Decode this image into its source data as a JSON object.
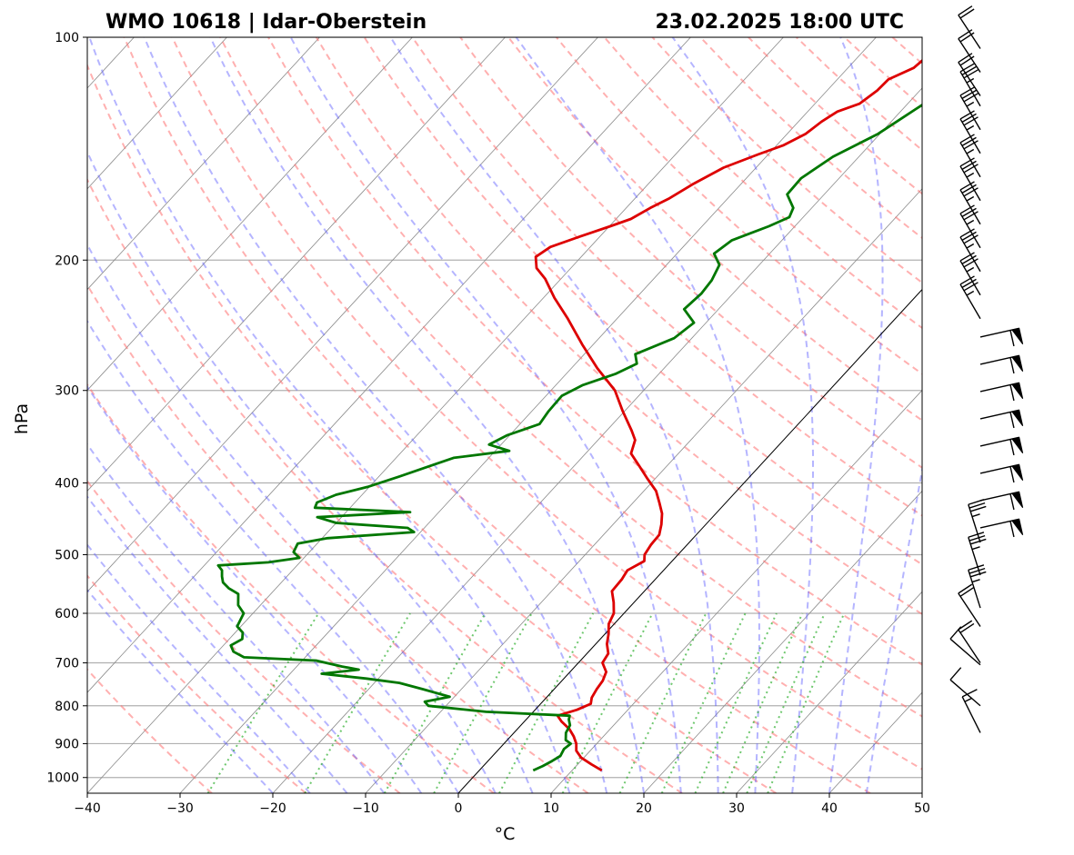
{
  "chart_data": {
    "type": "line",
    "subtype": "skew-T log-p diagram",
    "title_left": "WMO 10618 | Idar-Oberstein",
    "title_right": "23.02.2025 18:00 UTC",
    "xlabel": "°C",
    "ylabel": "hPa",
    "xlim": [
      -40,
      50
    ],
    "ylim": [
      1050,
      100
    ],
    "x_ticks": [
      -40,
      -30,
      -20,
      -10,
      0,
      10,
      20,
      30,
      40,
      50
    ],
    "x_tick_labels": [
      "−40",
      "−30",
      "−20",
      "−10",
      "0",
      "10",
      "20",
      "30",
      "40",
      "50"
    ],
    "y_ticks": [
      100,
      200,
      300,
      400,
      500,
      600,
      700,
      800,
      900,
      1000
    ],
    "y_tick_labels": [
      "100",
      "200",
      "300",
      "400",
      "500",
      "600",
      "700",
      "800",
      "900",
      "1000"
    ],
    "series": [
      {
        "name": "temperature",
        "color": "#dd0000",
        "points": [
          [
            978,
            13.2
          ],
          [
            960,
            11.5
          ],
          [
            940,
            9.7
          ],
          [
            920,
            8.5
          ],
          [
            900,
            7.8
          ],
          [
            880,
            6.8
          ],
          [
            860,
            5.6
          ],
          [
            840,
            4.0
          ],
          [
            825,
            3.0
          ],
          [
            810,
            4.5
          ],
          [
            795,
            5.4
          ],
          [
            780,
            4.9
          ],
          [
            760,
            4.6
          ],
          [
            740,
            4.4
          ],
          [
            720,
            3.9
          ],
          [
            700,
            2.6
          ],
          [
            680,
            2.3
          ],
          [
            660,
            1.2
          ],
          [
            640,
            0.4
          ],
          [
            620,
            -0.6
          ],
          [
            600,
            -1.1
          ],
          [
            580,
            -2.2
          ],
          [
            560,
            -3.5
          ],
          [
            540,
            -3.6
          ],
          [
            525,
            -3.9
          ],
          [
            510,
            -3.0
          ],
          [
            500,
            -3.6
          ],
          [
            485,
            -3.9
          ],
          [
            470,
            -4.0
          ],
          [
            455,
            -4.8
          ],
          [
            440,
            -5.8
          ],
          [
            425,
            -7.2
          ],
          [
            410,
            -8.7
          ],
          [
            395,
            -10.8
          ],
          [
            380,
            -12.9
          ],
          [
            365,
            -15.1
          ],
          [
            350,
            -16.0
          ],
          [
            340,
            -17.3
          ],
          [
            320,
            -20.2
          ],
          [
            300,
            -23.1
          ],
          [
            280,
            -27.2
          ],
          [
            260,
            -31.2
          ],
          [
            240,
            -35.3
          ],
          [
            225,
            -38.8
          ],
          [
            212,
            -41.7
          ],
          [
            205,
            -43.7
          ],
          [
            198,
            -44.9
          ],
          [
            192,
            -44.3
          ],
          [
            186,
            -42.2
          ],
          [
            180,
            -39.9
          ],
          [
            176,
            -38.4
          ],
          [
            170,
            -37.4
          ],
          [
            165,
            -36.3
          ],
          [
            158,
            -35.2
          ],
          [
            150,
            -33.5
          ],
          [
            144,
            -31.1
          ],
          [
            140,
            -29.3
          ],
          [
            135,
            -28.0
          ],
          [
            130,
            -27.5
          ],
          [
            126,
            -26.8
          ],
          [
            123,
            -25.2
          ],
          [
            118,
            -24.6
          ],
          [
            114,
            -24.5
          ],
          [
            110,
            -22.9
          ],
          [
            106,
            -22.6
          ],
          [
            102,
            -22.0
          ],
          [
            100,
            -20.6
          ]
        ]
      },
      {
        "name": "dewpoint",
        "color": "#007700",
        "points": [
          [
            978,
            5.8
          ],
          [
            965,
            6.4
          ],
          [
            950,
            6.9
          ],
          [
            935,
            7.3
          ],
          [
            915,
            7.0
          ],
          [
            900,
            7.2
          ],
          [
            890,
            6.3
          ],
          [
            870,
            5.6
          ],
          [
            850,
            5.3
          ],
          [
            835,
            4.6
          ],
          [
            825,
            4.3
          ],
          [
            815,
            -5.1
          ],
          [
            800,
            -11.9
          ],
          [
            790,
            -12.7
          ],
          [
            778,
            -10.5
          ],
          [
            760,
            -14.1
          ],
          [
            745,
            -17.3
          ],
          [
            735,
            -21.3
          ],
          [
            724,
            -26.6
          ],
          [
            715,
            -23.0
          ],
          [
            708,
            -25.1
          ],
          [
            695,
            -28.5
          ],
          [
            688,
            -36.6
          ],
          [
            676,
            -38.3
          ],
          [
            663,
            -39.2
          ],
          [
            650,
            -38.6
          ],
          [
            637,
            -39.2
          ],
          [
            625,
            -40.4
          ],
          [
            600,
            -41.0
          ],
          [
            585,
            -42.4
          ],
          [
            565,
            -43.5
          ],
          [
            555,
            -45.1
          ],
          [
            545,
            -46.3
          ],
          [
            535,
            -47.0
          ],
          [
            525,
            -47.6
          ],
          [
            517,
            -48.5
          ],
          [
            512,
            -43.4
          ],
          [
            505,
            -40.5
          ],
          [
            496,
            -41.7
          ],
          [
            483,
            -42.1
          ],
          [
            475,
            -39.4
          ],
          [
            466,
            -30.7
          ],
          [
            460,
            -31.8
          ],
          [
            453,
            -40.0
          ],
          [
            445,
            -42.6
          ],
          [
            438,
            -33.1
          ],
          [
            432,
            -43.8
          ],
          [
            425,
            -44.1
          ],
          [
            415,
            -42.8
          ],
          [
            405,
            -40.2
          ],
          [
            392,
            -37.8
          ],
          [
            382,
            -36.0
          ],
          [
            370,
            -33.8
          ],
          [
            362,
            -28.5
          ],
          [
            355,
            -31.3
          ],
          [
            345,
            -30.3
          ],
          [
            333,
            -27.9
          ],
          [
            320,
            -28.2
          ],
          [
            305,
            -28.3
          ],
          [
            295,
            -27.1
          ],
          [
            285,
            -24.7
          ],
          [
            276,
            -23.4
          ],
          [
            268,
            -24.5
          ],
          [
            255,
            -21.9
          ],
          [
            243,
            -21.3
          ],
          [
            233,
            -23.7
          ],
          [
            222,
            -23.4
          ],
          [
            213,
            -23.6
          ],
          [
            203,
            -24.3
          ],
          [
            196,
            -26.0
          ],
          [
            188,
            -25.4
          ],
          [
            180,
            -22.8
          ],
          [
            175,
            -21.5
          ],
          [
            170,
            -22.0
          ],
          [
            163,
            -24.0
          ],
          [
            155,
            -24.1
          ],
          [
            145,
            -22.8
          ],
          [
            135,
            -20.2
          ],
          [
            125,
            -18.6
          ],
          [
            115,
            -16.8
          ],
          [
            107,
            -15.2
          ],
          [
            100,
            -13.5
          ]
        ]
      }
    ],
    "winds_label": "wind barbs"
  }
}
